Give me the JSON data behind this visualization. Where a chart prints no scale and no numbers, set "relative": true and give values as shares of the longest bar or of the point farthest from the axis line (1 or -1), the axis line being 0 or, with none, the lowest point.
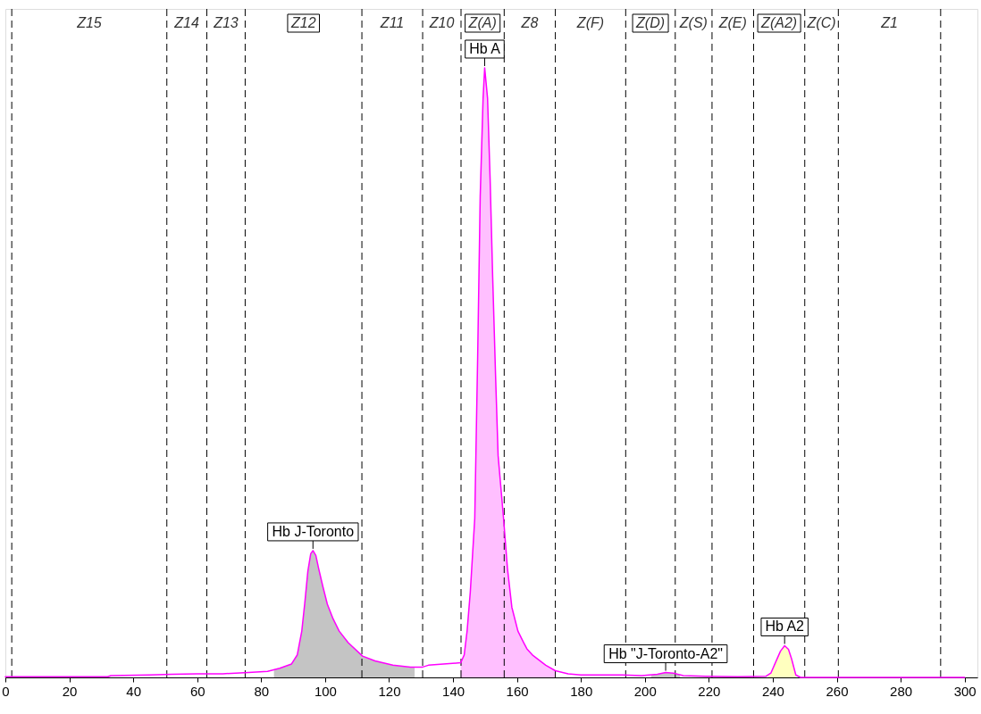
{
  "chart_data": {
    "type": "line",
    "relative": true,
    "xlim": [
      0,
      304
    ],
    "xticks": [
      0,
      20,
      40,
      60,
      80,
      100,
      120,
      140,
      160,
      180,
      200,
      220,
      240,
      260,
      280,
      300
    ],
    "line_style": "solid",
    "series": [
      {
        "type": "area",
        "color": "#c4c4c4",
        "x": [
          84,
          85.8,
          89.5,
          91.3,
          92.7,
          93.7,
          94.6,
          95.5,
          96.2,
          97.1,
          98,
          99.3,
          100.7,
          102.5,
          104.4,
          107.2,
          111.7,
          115.6,
          121.2,
          126.7,
          128
        ],
        "values": [
          0.013,
          0.015,
          0.022,
          0.037,
          0.076,
          0.125,
          0.174,
          0.203,
          0.208,
          0.2,
          0.178,
          0.149,
          0.12,
          0.096,
          0.076,
          0.057,
          0.035,
          0.027,
          0.02,
          0.017,
          0.017
        ]
      },
      {
        "type": "area",
        "color": "#ffbfff",
        "x": [
          142.4,
          143.5,
          144.4,
          145.4,
          146.8,
          147.7,
          148.5,
          149.4,
          149.9,
          150.8,
          151.6,
          152.4,
          153.3,
          154.1,
          155.8,
          157,
          158.4,
          160.3,
          162.1,
          163.1,
          165,
          169,
          172
        ],
        "values": [
          0.024,
          0.037,
          0.076,
          0.14,
          0.261,
          0.525,
          0.789,
          0.95,
          1,
          0.95,
          0.818,
          0.657,
          0.496,
          0.364,
          0.261,
          0.18,
          0.115,
          0.076,
          0.057,
          0.047,
          0.036,
          0.02,
          0.011
        ]
      },
      {
        "type": "area",
        "color": "#c4c4c4",
        "x": [
          202,
          203.9,
          206.5,
          208.9,
          211
        ],
        "values": [
          0.004,
          0.005,
          0.008,
          0.007,
          0.004
        ]
      },
      {
        "type": "area",
        "color": "#ffffbf",
        "x": [
          238.5,
          239.4,
          240.9,
          242.4,
          243.7,
          244.9,
          245.9,
          247.2
        ],
        "values": [
          0.003,
          0.007,
          0.025,
          0.043,
          0.052,
          0.046,
          0.03,
          0.004
        ]
      },
      {
        "color": "#ff00ff",
        "x": [
          0,
          20,
          32,
          33,
          45,
          52,
          60,
          68,
          76,
          82,
          85.8,
          89.5,
          91.3,
          92.7,
          93.7,
          94.6,
          95.5,
          96.2,
          97.1,
          98,
          99.3,
          100.7,
          102.5,
          104.4,
          107.2,
          111.7,
          115.6,
          121.2,
          126.7,
          130.5,
          132.3,
          137,
          142.4,
          143.5,
          144.4,
          145.4,
          146.8,
          147.7,
          148.5,
          149.4,
          149.9,
          150.8,
          151.6,
          152.4,
          153.3,
          154.1,
          155.8,
          157,
          158.4,
          160.3,
          162.1,
          163.1,
          165,
          169,
          172,
          176,
          180,
          193,
          199,
          203.9,
          206.5,
          208.9,
          212,
          219,
          229,
          237.9,
          239.4,
          240.9,
          242.4,
          243.7,
          244.9,
          245.9,
          247.2,
          248.7,
          300
        ],
        "values": [
          0.001,
          0.001,
          0.001,
          0.003,
          0.004,
          0.005,
          0.006,
          0.006,
          0.008,
          0.01,
          0.015,
          0.022,
          0.037,
          0.076,
          0.125,
          0.174,
          0.203,
          0.208,
          0.2,
          0.178,
          0.149,
          0.12,
          0.096,
          0.076,
          0.057,
          0.035,
          0.027,
          0.02,
          0.017,
          0.017,
          0.02,
          0.022,
          0.024,
          0.037,
          0.076,
          0.14,
          0.261,
          0.525,
          0.789,
          0.95,
          1,
          0.95,
          0.818,
          0.657,
          0.496,
          0.364,
          0.261,
          0.18,
          0.115,
          0.076,
          0.057,
          0.047,
          0.036,
          0.02,
          0.011,
          0.006,
          0.004,
          0.004,
          0.003,
          0.005,
          0.008,
          0.007,
          0.003,
          0.002,
          0.001,
          0.002,
          0.007,
          0.025,
          0.043,
          0.052,
          0.046,
          0.03,
          0.004,
          0,
          0
        ]
      }
    ],
    "ref_lines": [
      {
        "axis": "x",
        "value": 2,
        "color": "#000000",
        "line_style": "dashed"
      },
      {
        "axis": "x",
        "value": 50.5,
        "color": "#000000",
        "line_style": "dashed"
      },
      {
        "axis": "x",
        "value": 63,
        "color": "#000000",
        "line_style": "dashed"
      },
      {
        "axis": "x",
        "value": 75,
        "color": "#000000",
        "line_style": "dashed"
      },
      {
        "axis": "x",
        "value": 111.5,
        "color": "#000000",
        "line_style": "dashed"
      },
      {
        "axis": "x",
        "value": 130.5,
        "color": "#000000",
        "line_style": "dashed"
      },
      {
        "axis": "x",
        "value": 142.5,
        "color": "#000000",
        "line_style": "dashed"
      },
      {
        "axis": "x",
        "value": 156,
        "color": "#000000",
        "line_style": "dashed"
      },
      {
        "axis": "x",
        "value": 172,
        "color": "#000000",
        "line_style": "dashed"
      },
      {
        "axis": "x",
        "value": 194,
        "color": "#000000",
        "line_style": "dashed"
      },
      {
        "axis": "x",
        "value": 209.5,
        "color": "#000000",
        "line_style": "dashed"
      },
      {
        "axis": "x",
        "value": 221,
        "color": "#000000",
        "line_style": "dashed"
      },
      {
        "axis": "x",
        "value": 234,
        "color": "#000000",
        "line_style": "dashed"
      },
      {
        "axis": "x",
        "value": 250,
        "color": "#000000",
        "line_style": "dashed"
      },
      {
        "axis": "x",
        "value": 260.5,
        "color": "#000000",
        "line_style": "dashed"
      },
      {
        "axis": "x",
        "value": 292.5,
        "color": "#000000",
        "line_style": "dashed"
      }
    ],
    "annotations": [
      "Z15",
      "Z14",
      "Z13",
      "Z12",
      "Z11",
      "Z10",
      "Z(A)",
      "Z8",
      "Z(F)",
      "Z(D)",
      "Z(S)",
      "Z(E)",
      "Z(A2)",
      "Z(C)",
      "Z1",
      {
        "text": "Hb J-Toronto",
        "x": 96.2,
        "y": 0.208
      },
      {
        "text": "Hb A",
        "x": 149.9,
        "y": 1
      },
      {
        "text": "Hb \"J-Toronto-A2\"",
        "x": 206.5,
        "y": 0.008
      },
      {
        "text": "Hb A2",
        "x": 243.7,
        "y": 0.052
      }
    ]
  }
}
